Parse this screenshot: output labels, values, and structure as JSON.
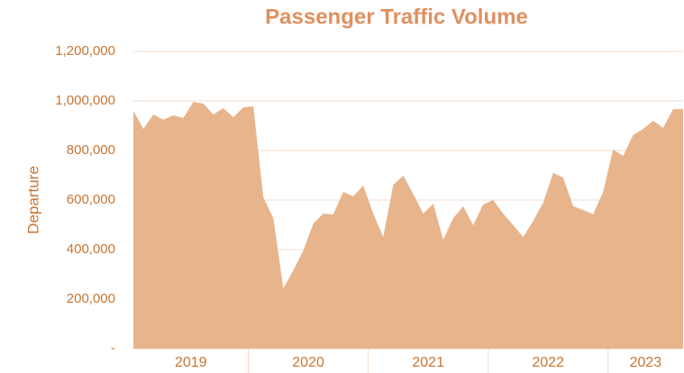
{
  "chart_data": {
    "type": "area",
    "title": "Passenger Traffic Volume",
    "y_label": "Departure",
    "categories": [
      null,
      null,
      null,
      null,
      null,
      null,
      null,
      null,
      null,
      null,
      null,
      null,
      null,
      null,
      null,
      null,
      null,
      null,
      null,
      null,
      null,
      null,
      null,
      null,
      null,
      null,
      null,
      null,
      null,
      null,
      null,
      null,
      null,
      null,
      null,
      null,
      null,
      null,
      null,
      null,
      null,
      null,
      null,
      null,
      null,
      null,
      null,
      null,
      null,
      null,
      null,
      null,
      null,
      null,
      null,
      null
    ],
    "x_groups": [
      {
        "label": "2019",
        "size": 12
      },
      {
        "label": "2020",
        "size": 12
      },
      {
        "label": "2021",
        "size": 12
      },
      {
        "label": "2022",
        "size": 12
      },
      {
        "label": "2023",
        "size": 8
      }
    ],
    "values": [
      960000,
      887000,
      945000,
      924000,
      942000,
      931000,
      996000,
      989000,
      945000,
      971000,
      934000,
      974000,
      978000,
      611000,
      527000,
      244000,
      316000,
      396000,
      505000,
      545000,
      542000,
      633000,
      615000,
      658000,
      545000,
      451000,
      662000,
      698000,
      625000,
      545000,
      585000,
      440000,
      527000,
      575000,
      498000,
      582000,
      600000,
      545000,
      498000,
      451000,
      516000,
      589000,
      709000,
      691000,
      575000,
      560000,
      542000,
      633000,
      804000,
      778000,
      862000,
      887000,
      920000,
      891000,
      967000,
      967000
    ],
    "color": "#e8b48c",
    "ylim": [
      0,
      1200000
    ],
    "yticks": [
      {
        "value": 0,
        "label": "-"
      },
      {
        "value": 200000,
        "label": "200,000"
      },
      {
        "value": 400000,
        "label": "400,000"
      },
      {
        "value": 600000,
        "label": "600,000"
      },
      {
        "value": 800000,
        "label": "800,000"
      },
      {
        "value": 1000000,
        "label": "1,000,000"
      },
      {
        "value": 1200000,
        "label": "1,200,000"
      }
    ],
    "grid": true
  }
}
